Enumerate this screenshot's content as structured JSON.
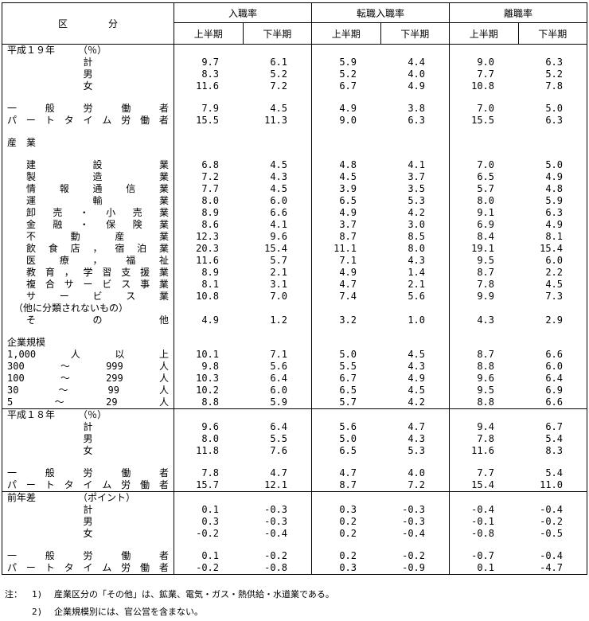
{
  "table": {
    "header": {
      "category": "区分",
      "groups": [
        "入職率",
        "転職入職率",
        "離職率"
      ],
      "periods": [
        "上半期",
        "下半期"
      ]
    },
    "rows": [
      {
        "type": "section",
        "label": "平成１９年",
        "note": "（％）"
      },
      {
        "type": "data",
        "align": "center",
        "label": "計",
        "values": [
          "9.7",
          "6.1",
          "5.9",
          "4.4",
          "9.0",
          "6.3"
        ]
      },
      {
        "type": "data",
        "align": "center",
        "label": "男",
        "values": [
          "8.3",
          "5.2",
          "5.2",
          "4.0",
          "7.7",
          "5.2"
        ]
      },
      {
        "type": "data",
        "align": "center",
        "label": "女",
        "values": [
          "11.6",
          "7.2",
          "6.7",
          "4.9",
          "10.8",
          "7.8"
        ]
      },
      {
        "type": "spacer"
      },
      {
        "type": "data",
        "align": "justify",
        "label": "一般労働者",
        "values": [
          "7.9",
          "4.5",
          "4.9",
          "3.8",
          "7.0",
          "5.0"
        ]
      },
      {
        "type": "data",
        "align": "justify",
        "label": "パートタイム労働者",
        "values": [
          "15.5",
          "11.3",
          "9.0",
          "6.3",
          "15.5",
          "6.3"
        ]
      },
      {
        "type": "spacer"
      },
      {
        "type": "section",
        "label": "産　業"
      },
      {
        "type": "spacer"
      },
      {
        "type": "data",
        "align": "justify",
        "indent": 1,
        "label": "建設業",
        "values": [
          "6.8",
          "4.5",
          "4.8",
          "4.1",
          "7.0",
          "5.0"
        ]
      },
      {
        "type": "data",
        "align": "justify",
        "indent": 1,
        "label": "製造業",
        "values": [
          "7.2",
          "4.3",
          "4.5",
          "3.7",
          "6.5",
          "4.9"
        ]
      },
      {
        "type": "data",
        "align": "justify",
        "indent": 1,
        "label": "情報通信業",
        "values": [
          "7.7",
          "4.5",
          "3.9",
          "3.5",
          "5.7",
          "4.8"
        ]
      },
      {
        "type": "data",
        "align": "justify",
        "indent": 1,
        "label": "運輸業",
        "values": [
          "8.0",
          "6.0",
          "6.5",
          "5.3",
          "8.0",
          "5.9"
        ]
      },
      {
        "type": "data",
        "align": "justify",
        "indent": 1,
        "label": "卸売・小売業",
        "values": [
          "8.9",
          "6.6",
          "4.9",
          "4.2",
          "9.1",
          "6.3"
        ]
      },
      {
        "type": "data",
        "align": "justify",
        "indent": 1,
        "label": "金融・保険業",
        "values": [
          "8.6",
          "4.1",
          "3.7",
          "3.0",
          "6.9",
          "4.9"
        ]
      },
      {
        "type": "data",
        "align": "justify",
        "indent": 1,
        "label": "不動産業",
        "values": [
          "12.3",
          "9.6",
          "8.7",
          "8.5",
          "8.4",
          "8.1"
        ]
      },
      {
        "type": "data",
        "align": "justify",
        "indent": 1,
        "label": "飲食店，宿泊業",
        "values": [
          "20.3",
          "15.4",
          "11.1",
          "8.0",
          "19.1",
          "15.4"
        ]
      },
      {
        "type": "data",
        "align": "justify",
        "indent": 1,
        "label": "医療，福祉",
        "values": [
          "11.6",
          "5.7",
          "7.1",
          "4.3",
          "9.5",
          "6.0"
        ]
      },
      {
        "type": "data",
        "align": "justify",
        "indent": 1,
        "label": "教育，学習支援業",
        "values": [
          "8.9",
          "2.1",
          "4.9",
          "1.4",
          "8.7",
          "2.2"
        ]
      },
      {
        "type": "data",
        "align": "justify",
        "indent": 1,
        "label": "複合サービス事業",
        "values": [
          "8.1",
          "3.1",
          "4.7",
          "2.1",
          "7.8",
          "4.5"
        ]
      },
      {
        "type": "data",
        "align": "justify",
        "indent": 1,
        "label": "サービス業",
        "sublabel": "（他に分類されないもの）",
        "values": [
          "10.8",
          "7.0",
          "7.4",
          "5.6",
          "9.9",
          "7.3"
        ]
      },
      {
        "type": "data",
        "align": "justify",
        "indent": 1,
        "label": "その他",
        "values": [
          "4.9",
          "1.2",
          "3.2",
          "1.0",
          "4.3",
          "2.9"
        ]
      },
      {
        "type": "spacer"
      },
      {
        "type": "section",
        "label": "企業規模"
      },
      {
        "type": "data",
        "align": "justify",
        "label": "1,000人以上",
        "values": [
          "10.1",
          "7.1",
          "5.0",
          "4.5",
          "8.7",
          "6.6"
        ]
      },
      {
        "type": "data",
        "align": "justify",
        "label": "300～999人",
        "values": [
          "9.8",
          "5.6",
          "5.5",
          "4.3",
          "8.8",
          "6.0"
        ]
      },
      {
        "type": "data",
        "align": "justify",
        "label": "100～299人",
        "values": [
          "10.3",
          "6.4",
          "6.7",
          "4.9",
          "9.6",
          "6.4"
        ]
      },
      {
        "type": "data",
        "align": "justify",
        "label": "30～99人",
        "values": [
          "10.2",
          "6.0",
          "6.5",
          "4.5",
          "9.5",
          "6.9"
        ]
      },
      {
        "type": "data",
        "align": "justify",
        "label": "5～29人",
        "values": [
          "8.8",
          "5.9",
          "5.7",
          "4.2",
          "8.8",
          "6.6"
        ]
      },
      {
        "type": "section",
        "line": true,
        "label": "平成１８年",
        "note": "（％）"
      },
      {
        "type": "data",
        "align": "center",
        "label": "計",
        "values": [
          "9.6",
          "6.4",
          "5.6",
          "4.7",
          "9.4",
          "6.7"
        ]
      },
      {
        "type": "data",
        "align": "center",
        "label": "男",
        "values": [
          "8.0",
          "5.5",
          "5.0",
          "4.3",
          "7.8",
          "5.4"
        ]
      },
      {
        "type": "data",
        "align": "center",
        "label": "女",
        "values": [
          "11.8",
          "7.6",
          "6.5",
          "5.3",
          "11.6",
          "8.3"
        ]
      },
      {
        "type": "spacer"
      },
      {
        "type": "data",
        "align": "justify",
        "label": "一般労働者",
        "values": [
          "7.8",
          "4.7",
          "4.7",
          "4.0",
          "7.7",
          "5.4"
        ]
      },
      {
        "type": "data",
        "align": "justify",
        "label": "パートタイム労働者",
        "values": [
          "15.7",
          "12.1",
          "8.7",
          "7.2",
          "15.4",
          "11.0"
        ]
      },
      {
        "type": "section",
        "line": true,
        "label": "前年差",
        "note": "（ポイント）"
      },
      {
        "type": "data",
        "align": "center",
        "label": "計",
        "values": [
          "0.1",
          "-0.3",
          "0.3",
          "-0.3",
          "-0.4",
          "-0.4"
        ]
      },
      {
        "type": "data",
        "align": "center",
        "label": "男",
        "values": [
          "0.3",
          "-0.3",
          "0.2",
          "-0.3",
          "-0.1",
          "-0.2"
        ]
      },
      {
        "type": "data",
        "align": "center",
        "label": "女",
        "values": [
          "-0.2",
          "-0.4",
          "0.2",
          "-0.4",
          "-0.8",
          "-0.5"
        ]
      },
      {
        "type": "spacer"
      },
      {
        "type": "data",
        "align": "justify",
        "label": "一般労働者",
        "values": [
          "0.1",
          "-0.2",
          "0.2",
          "-0.2",
          "-0.7",
          "-0.4"
        ]
      },
      {
        "type": "data",
        "align": "justify",
        "label": "パートタイム労働者",
        "values": [
          "-0.2",
          "-0.8",
          "0.3",
          "-0.9",
          "0.1",
          "-4.7"
        ]
      }
    ]
  },
  "notes": {
    "prefix": "注：",
    "items": [
      {
        "num": "1)",
        "text": "産業区分の「その他」は、鉱業、電気・ガス・熱供給・水道業である。"
      },
      {
        "num": "2)",
        "text": "企業規模別には、官公営を含まない。"
      }
    ]
  }
}
